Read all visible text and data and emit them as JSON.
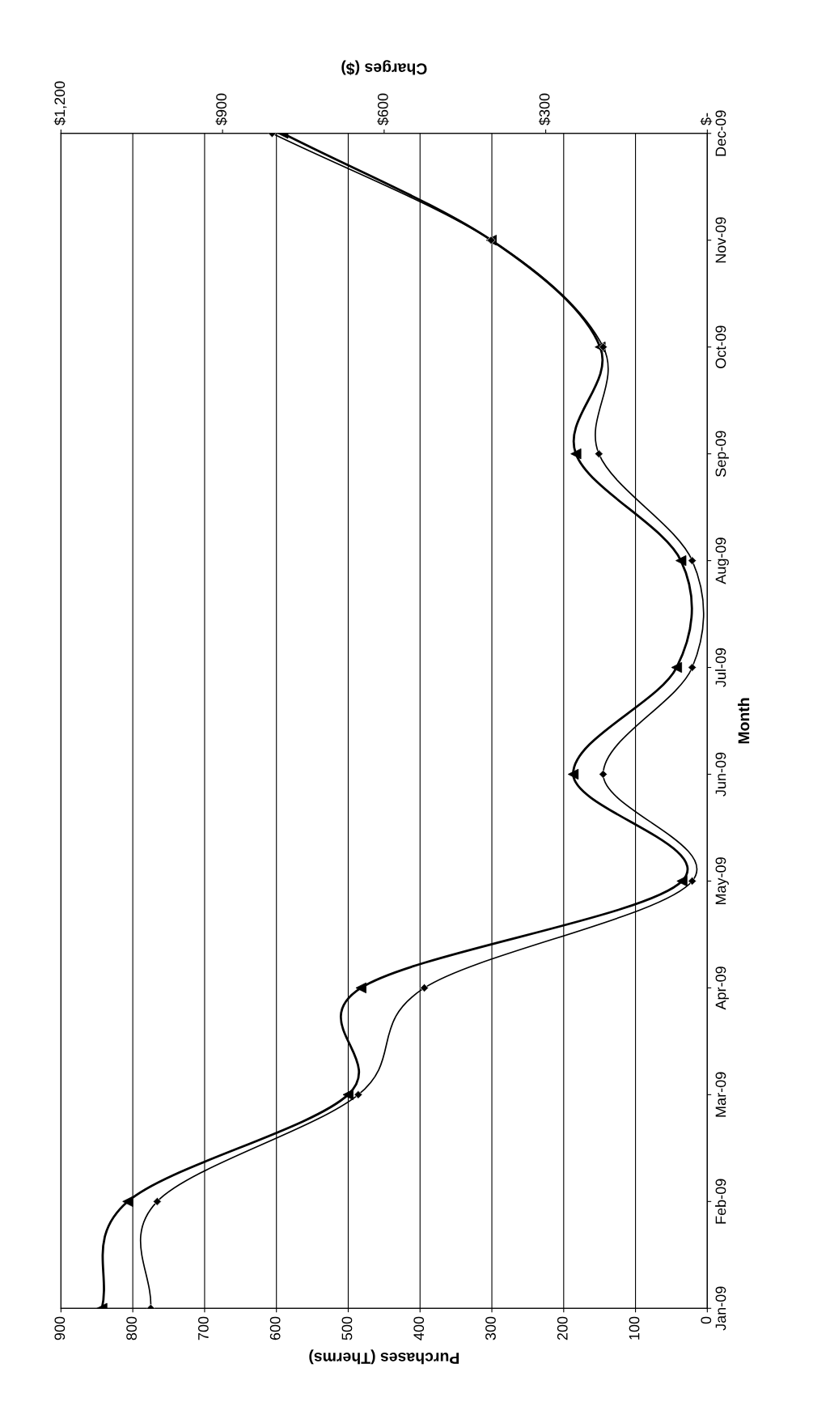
{
  "chart_data": {
    "type": "line",
    "orientation": "horizontal",
    "xlabel": "Purchases (Therms)",
    "x2label": "Charges ($)",
    "ylabel": "Month",
    "categories": [
      "Dec-09",
      "Nov-09",
      "Oct-09",
      "Sep-09",
      "Aug-09",
      "Jul-09",
      "Jun-09",
      "May-09",
      "Apr-09",
      "Mar-09",
      "Feb-09",
      "Jan-09"
    ],
    "series": [
      {
        "color": "#000000",
        "marker": "diamond",
        "values": [
          606,
          301,
          145,
          151,
          21,
          21,
          145,
          21,
          394,
          486,
          766,
          775
        ]
      },
      {
        "color": "#000000",
        "marker": "triangle",
        "axis": "x2",
        "values": [
          788,
          401,
          199,
          244,
          49,
          57,
          249,
          47,
          643,
          667,
          1076,
          1124
        ]
      }
    ],
    "xlim": [
      900,
      0
    ],
    "xticks": [
      900,
      800,
      700,
      600,
      500,
      400,
      300,
      200,
      100,
      0
    ],
    "x2lim": [
      1200,
      0
    ],
    "x2ticks": [
      {
        "value": 1200,
        "label": "$1,200"
      },
      {
        "value": 900,
        "label": "$900"
      },
      {
        "value": 600,
        "label": "$600"
      },
      {
        "value": 300,
        "label": "$300"
      },
      {
        "value": 0,
        "label": "$-"
      }
    ],
    "grid": "x",
    "line_style": "solid"
  }
}
